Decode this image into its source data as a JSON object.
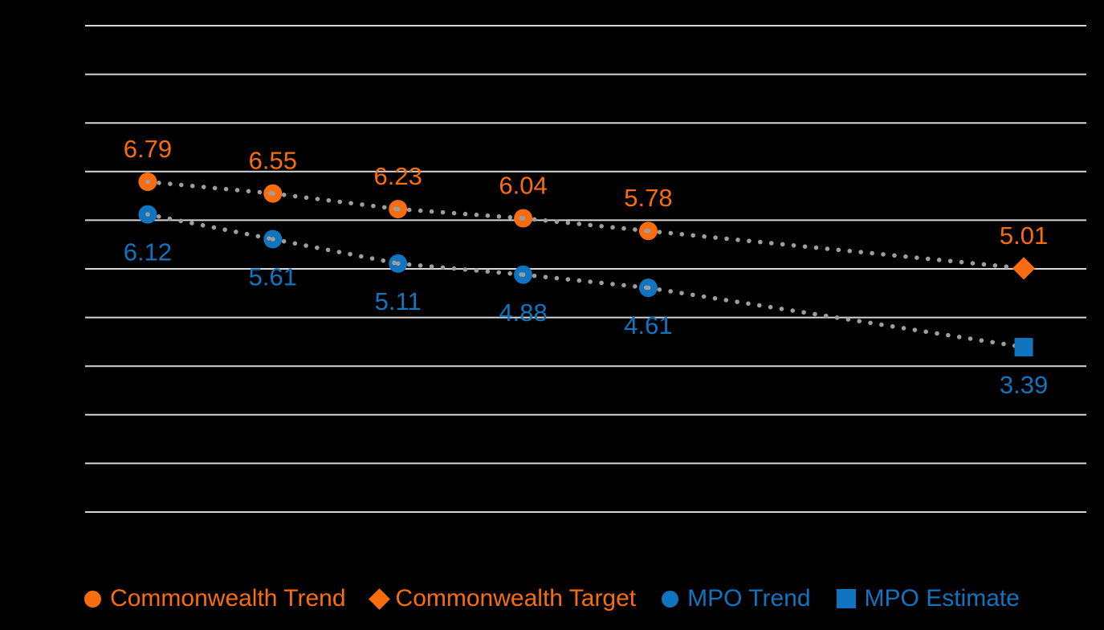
{
  "page": {
    "background_color": "#000000"
  },
  "chart_data": {
    "type": "scatter",
    "title": "",
    "xlabel": "",
    "ylabel": "",
    "ylim": [
      0,
      10
    ],
    "y_gridline_step": 1,
    "x_slot_count": 8,
    "grid": "horizontal",
    "background_color": "#000000",
    "gridline_color": "#D6D6D6",
    "trendline_color": "#9E9E9E",
    "legend_position": "bottom",
    "series": [
      {
        "name": "Commonwealth Trend",
        "marker": "circle",
        "color": "#FA6D0E",
        "label_position": "above",
        "points": [
          {
            "slot": 0,
            "value": 6.79,
            "label": "6.79"
          },
          {
            "slot": 1,
            "value": 6.55,
            "label": "6.55"
          },
          {
            "slot": 2,
            "value": 6.23,
            "label": "6.23"
          },
          {
            "slot": 3,
            "value": 6.04,
            "label": "6.04"
          },
          {
            "slot": 4,
            "value": 5.78,
            "label": "5.78"
          }
        ]
      },
      {
        "name": "Commonwealth Target",
        "marker": "diamond",
        "color": "#FA6D0E",
        "label_position": "above",
        "points": [
          {
            "slot": 7,
            "value": 5.01,
            "label": "5.01"
          }
        ]
      },
      {
        "name": "MPO Trend",
        "marker": "circle",
        "color": "#1174BE",
        "label_position": "below",
        "points": [
          {
            "slot": 0,
            "value": 6.12,
            "label": "6.12"
          },
          {
            "slot": 1,
            "value": 5.61,
            "label": "5.61"
          },
          {
            "slot": 2,
            "value": 5.11,
            "label": "5.11"
          },
          {
            "slot": 3,
            "value": 4.88,
            "label": "4.88"
          },
          {
            "slot": 4,
            "value": 4.61,
            "label": "4.61"
          }
        ]
      },
      {
        "name": "MPO Estimate",
        "marker": "square",
        "color": "#1174BE",
        "label_position": "below",
        "points": [
          {
            "slot": 7,
            "value": 3.39,
            "label": "3.39"
          }
        ]
      }
    ],
    "trendlines": [
      {
        "through": [
          "Commonwealth Trend",
          "Commonwealth Target"
        ]
      },
      {
        "through": [
          "MPO Trend",
          "MPO Estimate"
        ]
      }
    ]
  },
  "legend": {
    "items": [
      {
        "label": "Commonwealth Trend",
        "marker": "circle",
        "color": "#FA6D0E"
      },
      {
        "label": "Commonwealth Target",
        "marker": "diamond",
        "color": "#FA6D0E"
      },
      {
        "label": "MPO Trend",
        "marker": "circle",
        "color": "#1174BE"
      },
      {
        "label": "MPO Estimate",
        "marker": "square",
        "color": "#1174BE"
      }
    ]
  }
}
